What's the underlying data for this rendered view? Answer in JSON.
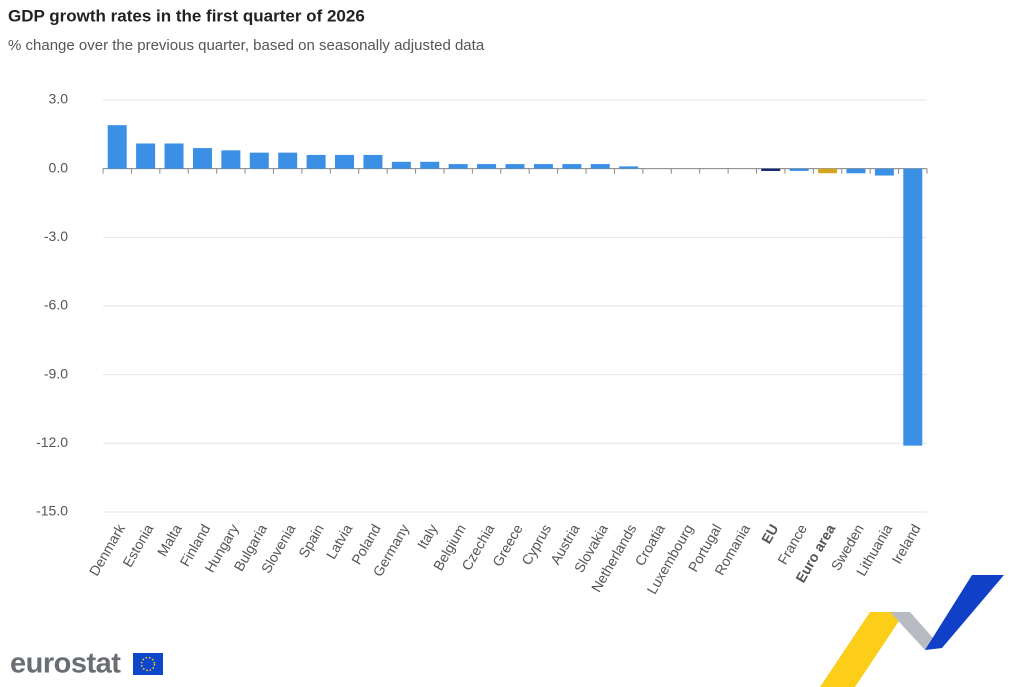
{
  "chart_data": {
    "type": "bar",
    "title": "GDP growth rates in the first quarter of 2026",
    "subtitle": "% change over the previous quarter, based on seasonally adjusted data",
    "categories": [
      "Denmark",
      "Estonia",
      "Malta",
      "Finland",
      "Hungary",
      "Bulgaria",
      "Slovenia",
      "Spain",
      "Latvia",
      "Poland",
      "Germany",
      "Italy",
      "Belgium",
      "Czechia",
      "Greece",
      "Cyprus",
      "Austria",
      "Slovakia",
      "Netherlands",
      "Croatia",
      "Luxembourg",
      "Portugal",
      "Romania",
      "EU",
      "France",
      "Euro area",
      "Sweden",
      "Lithuania",
      "Ireland"
    ],
    "values": [
      1.9,
      1.1,
      1.1,
      0.9,
      0.8,
      0.7,
      0.7,
      0.6,
      0.6,
      0.6,
      0.3,
      0.3,
      0.2,
      0.2,
      0.2,
      0.2,
      0.2,
      0.2,
      0.1,
      0,
      0,
      0,
      0,
      -0.1,
      -0.1,
      -0.2,
      -0.2,
      -0.3,
      -12.1
    ],
    "color": "#3b8fe5",
    "colors": [
      "#3b8fe5",
      "#3b8fe5",
      "#3b8fe5",
      "#3b8fe5",
      "#3b8fe5",
      "#3b8fe5",
      "#3b8fe5",
      "#3b8fe5",
      "#3b8fe5",
      "#3b8fe5",
      "#3b8fe5",
      "#3b8fe5",
      "#3b8fe5",
      "#3b8fe5",
      "#3b8fe5",
      "#3b8fe5",
      "#3b8fe5",
      "#3b8fe5",
      "#3b8fe5",
      "#3b8fe5",
      "#3b8fe5",
      "#3b8fe5",
      "#3b8fe5",
      "#0e2a6e",
      "#3b8fe5",
      "#d4a520",
      "#3b8fe5",
      "#3b8fe5",
      "#3b8fe5"
    ],
    "ylim": [
      -15,
      3
    ],
    "yticks": [
      {
        "value": -15,
        "label": "-15.0"
      },
      {
        "value": -12,
        "label": "-12.0"
      },
      {
        "value": -9,
        "label": "-9.0"
      },
      {
        "value": -6,
        "label": "-6.0"
      },
      {
        "value": -3,
        "label": "-3.0"
      },
      {
        "value": 0,
        "label": "0.0"
      },
      {
        "value": 3,
        "label": "3.0"
      }
    ],
    "grid": true
  },
  "footer": {
    "logo": "eurostat"
  }
}
